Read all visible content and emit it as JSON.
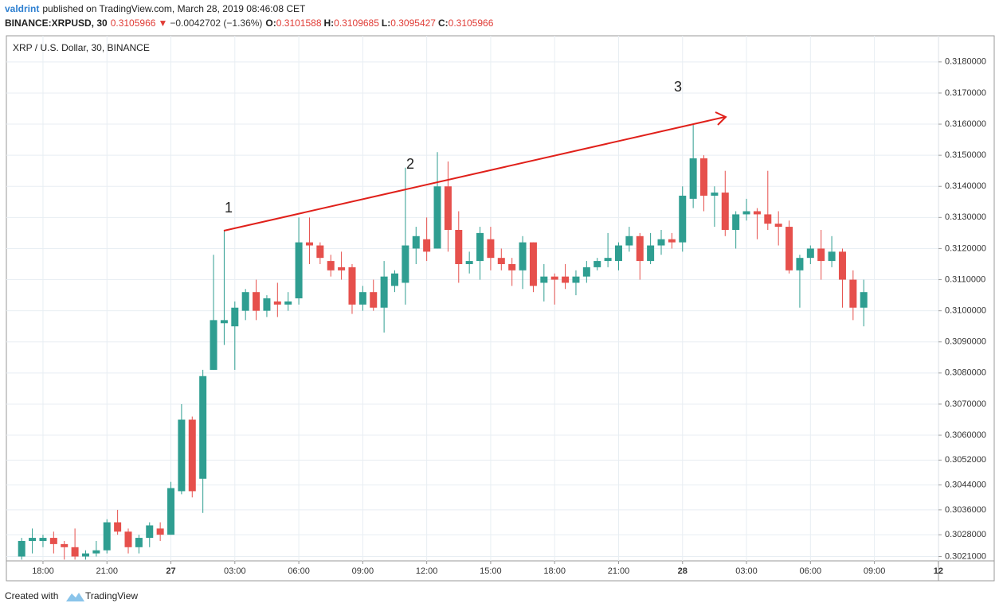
{
  "header": {
    "user": "valdrint",
    "published": "published on TradingView.com, March 28, 2019 08:46:08 CET",
    "symbol": "BINANCE:XRPUSD, 30",
    "last": "0.3105966",
    "arrow": "▼",
    "change": "−0.0042702 (−1.36%)",
    "ohlc": [
      {
        "label": "O:",
        "value": "0.3101588"
      },
      {
        "label": "H:",
        "value": "0.3109685"
      },
      {
        "label": "L:",
        "value": "0.3095427"
      },
      {
        "label": "C:",
        "value": "0.3105966"
      }
    ]
  },
  "footer": {
    "created": "Created with",
    "brand": "TradingView"
  },
  "chart_data": {
    "type": "candlestick",
    "title": "XRP / U.S. Dollar, 30, BINANCE",
    "up_color": "#2f9e91",
    "down_color": "#e6504c",
    "grid": true,
    "annotations": [
      "1",
      "2",
      "3"
    ],
    "categories": [
      null,
      null,
      "18:00",
      null,
      null,
      null,
      null,
      null,
      "21:00",
      null,
      null,
      null,
      null,
      null,
      "27",
      null,
      null,
      null,
      null,
      null,
      "03:00",
      null,
      null,
      null,
      null,
      null,
      "06:00",
      null,
      null,
      null,
      null,
      null,
      "09:00",
      null,
      null,
      null,
      null,
      null,
      "12:00",
      null,
      null,
      null,
      null,
      null,
      "15:00",
      null,
      null,
      null,
      null,
      null,
      "18:00",
      null,
      null,
      null,
      null,
      null,
      "21:00",
      null,
      null,
      null,
      null,
      null,
      "28",
      null,
      null,
      null,
      null,
      null,
      "03:00",
      null,
      null,
      null,
      null,
      null,
      "06:00",
      null,
      null,
      null,
      null,
      null,
      "09:00",
      null,
      null,
      null,
      null,
      null,
      "12"
    ],
    "open": [
      0.3021,
      0.3026,
      0.3026,
      0.3027,
      0.3025,
      0.3024,
      0.3021,
      0.3022,
      0.3023,
      0.3032,
      0.3029,
      0.3024,
      0.3027,
      0.303,
      0.3028,
      0.3042,
      0.3065,
      0.3046,
      0.3081,
      0.3096,
      0.3095,
      0.31,
      0.3106,
      0.31,
      0.3103,
      0.3102,
      0.3104,
      0.3122,
      0.3121,
      0.3116,
      0.3114,
      0.3114,
      0.3102,
      0.3106,
      0.3101,
      0.3108,
      0.3109,
      0.312,
      0.3123,
      0.312,
      0.314,
      0.3126,
      0.3115,
      0.3116,
      0.3123,
      0.3117,
      0.3115,
      0.3113,
      0.3122,
      0.3109,
      0.3111,
      0.3111,
      0.3109,
      0.3111,
      0.3114,
      0.3116,
      0.3116,
      0.3121,
      0.3124,
      0.3116,
      0.3121,
      0.3123,
      0.3122,
      0.3136,
      0.3149,
      0.3137,
      0.3138,
      0.3126,
      0.3131,
      0.3132,
      0.3131,
      0.3128,
      0.3127,
      0.3113,
      0.3117,
      0.312,
      0.3116,
      0.3119,
      0.311,
      0.3101,
      null,
      null,
      null,
      null,
      null,
      null,
      null
    ],
    "high": [
      0.3027,
      0.303,
      0.3028,
      0.3029,
      0.3026,
      0.303,
      0.3023,
      0.3026,
      0.3033,
      0.3036,
      0.303,
      0.3028,
      0.3032,
      0.3032,
      0.3045,
      0.307,
      0.3066,
      0.3081,
      0.3118,
      0.3126,
      0.3103,
      0.3107,
      0.311,
      0.3105,
      0.3109,
      0.3106,
      0.313,
      0.313,
      0.3122,
      0.3118,
      0.3119,
      0.3115,
      0.3108,
      0.311,
      0.3116,
      0.3113,
      0.3146,
      0.3127,
      0.313,
      0.3151,
      0.3148,
      0.3132,
      0.3119,
      0.3127,
      0.3127,
      0.312,
      0.3117,
      0.3124,
      0.3122,
      0.3115,
      0.3112,
      0.3115,
      0.3113,
      0.3116,
      0.3117,
      0.3125,
      0.3122,
      0.3127,
      0.3125,
      0.3125,
      0.3126,
      0.3125,
      0.314,
      0.316,
      0.315,
      0.314,
      0.3145,
      0.3132,
      0.3136,
      0.3133,
      0.3145,
      0.3132,
      0.3129,
      0.3118,
      0.3121,
      0.3126,
      0.3124,
      0.312,
      0.3113,
      0.311,
      null,
      null,
      null,
      null,
      null,
      null,
      null
    ],
    "low": [
      0.302,
      0.3022,
      0.3024,
      0.3022,
      0.302,
      0.302,
      0.302,
      0.3021,
      0.3022,
      0.3028,
      0.3022,
      0.3022,
      0.3024,
      0.3026,
      0.3028,
      0.3041,
      0.304,
      0.3035,
      0.3081,
      0.3089,
      0.3081,
      0.3097,
      0.3097,
      0.3098,
      0.3098,
      0.31,
      0.3102,
      0.3115,
      0.3115,
      0.3111,
      0.311,
      0.3099,
      0.31,
      0.31,
      0.3093,
      0.3106,
      0.3102,
      0.3115,
      0.3116,
      0.312,
      0.3119,
      0.3109,
      0.3112,
      0.311,
      0.3113,
      0.3113,
      0.3108,
      0.3107,
      0.3106,
      0.3103,
      0.3102,
      0.3107,
      0.3105,
      0.3109,
      0.3113,
      0.3114,
      0.3113,
      0.3119,
      0.311,
      0.3115,
      0.3118,
      0.312,
      0.3119,
      0.3133,
      0.3132,
      0.3127,
      0.3124,
      0.312,
      0.3129,
      0.3123,
      0.3126,
      0.3121,
      0.3112,
      0.3101,
      0.3115,
      0.311,
      0.3114,
      0.3101,
      0.3097,
      0.3095,
      null,
      null,
      null,
      null,
      null,
      null,
      null
    ],
    "close": [
      0.3026,
      0.3027,
      0.3027,
      0.3025,
      0.3024,
      0.3021,
      0.3022,
      0.3023,
      0.3032,
      0.3029,
      0.3024,
      0.3027,
      0.3031,
      0.3028,
      0.3043,
      0.3065,
      0.3042,
      0.3079,
      0.3097,
      0.3097,
      0.3101,
      0.3106,
      0.31,
      0.3104,
      0.3102,
      0.3103,
      0.3122,
      0.3121,
      0.3117,
      0.3113,
      0.3113,
      0.3102,
      0.3106,
      0.3101,
      0.3111,
      0.3112,
      0.3121,
      0.3124,
      0.3119,
      0.314,
      0.3126,
      0.3115,
      0.3116,
      0.3125,
      0.3117,
      0.3115,
      0.3113,
      0.3122,
      0.3108,
      0.3111,
      0.311,
      0.3109,
      0.3111,
      0.3114,
      0.3116,
      0.3117,
      0.3121,
      0.3124,
      0.3116,
      0.3121,
      0.3123,
      0.3122,
      0.3137,
      0.3149,
      0.3137,
      0.3138,
      0.3126,
      0.3131,
      0.3132,
      0.3131,
      0.3128,
      0.3127,
      0.3113,
      0.3117,
      0.312,
      0.3116,
      0.3119,
      0.311,
      0.3101,
      0.3106,
      null,
      null,
      null,
      null,
      null,
      null,
      null
    ],
    "ylim": [
      0.30196,
      0.31884
    ],
    "yticks": [
      {
        "value": 0.318,
        "label": "0.3180000"
      },
      {
        "value": 0.317,
        "label": "0.3170000"
      },
      {
        "value": 0.316,
        "label": "0.3160000"
      },
      {
        "value": 0.315,
        "label": "0.3150000"
      },
      {
        "value": 0.314,
        "label": "0.3140000"
      },
      {
        "value": 0.313,
        "label": "0.3130000"
      },
      {
        "value": 0.312,
        "label": "0.3120000"
      },
      {
        "value": 0.311,
        "label": "0.3110000"
      },
      {
        "value": 0.31,
        "label": "0.3100000"
      },
      {
        "value": 0.309,
        "label": "0.3090000"
      },
      {
        "value": 0.308,
        "label": "0.3080000"
      },
      {
        "value": 0.307,
        "label": "0.3070000"
      },
      {
        "value": 0.306,
        "label": "0.3060000"
      },
      {
        "value": 0.3052,
        "label": "0.3052000"
      },
      {
        "value": 0.3044,
        "label": "0.3044000"
      },
      {
        "value": 0.3036,
        "label": "0.3036000"
      },
      {
        "value": 0.3028,
        "label": "0.3028000"
      },
      {
        "value": 0.3021,
        "label": "0.3021000"
      }
    ]
  }
}
